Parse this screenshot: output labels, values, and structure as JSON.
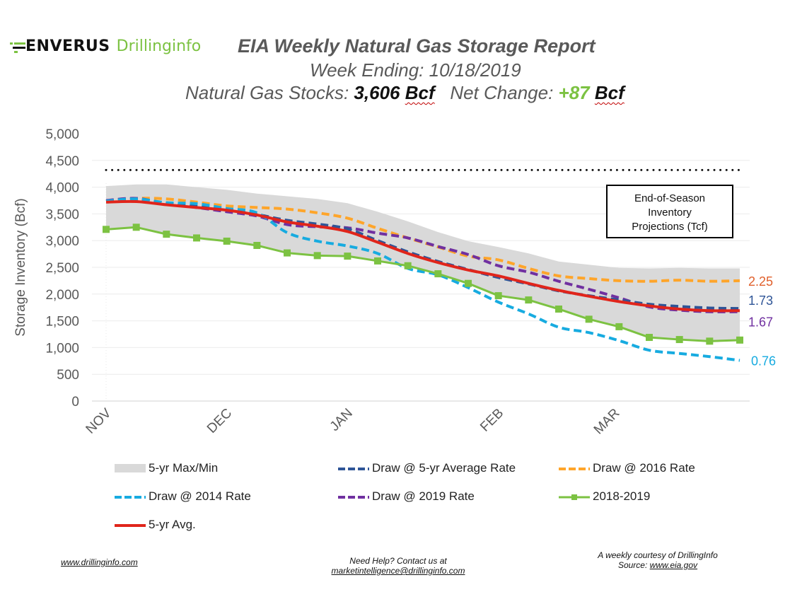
{
  "header": {
    "logo_brand": "ENVERUS",
    "logo_product": "Drillinginfo",
    "title": "EIA Weekly Natural Gas Storage Report",
    "week_ending_label": "Week Ending: 10/18/2019",
    "stocks_label": "Natural Gas Stocks: ",
    "stocks_value": "3,606",
    "stocks_unit": "Bcf",
    "net_change_label": "Net Change: ",
    "net_change_value": "+87",
    "net_change_unit": "Bcf"
  },
  "colors": {
    "band": "#d9d9d9",
    "five_yr_avg_rate": "#2f5597",
    "rate_2016": "#ffa52a",
    "rate_2014": "#17abe0",
    "rate_2019": "#7030a0",
    "season_2018_2019": "#7cc242",
    "five_yr_avg": "#e0251b",
    "label_2016": "#e0602c",
    "label_5yr": "#2f5597",
    "label_2019": "#7030a0",
    "label_2014": "#17abe0"
  },
  "chart_data": {
    "type": "line",
    "title": "EIA Weekly Natural Gas Storage Report",
    "xlabel": "",
    "ylabel": "Storage Inventory (Bcf)",
    "ylim": [
      0,
      5000
    ],
    "yticks": [
      0,
      500,
      1000,
      1500,
      2000,
      2500,
      3000,
      3500,
      4000,
      4500,
      5000
    ],
    "ytick_labels": [
      "0",
      "500",
      "1,000",
      "1,500",
      "2,000",
      "2,500",
      "3,000",
      "3,500",
      "4,000",
      "4,500",
      "5,000"
    ],
    "x_week_count": 22,
    "month_ticks": [
      {
        "label": "NOV",
        "week": 0
      },
      {
        "label": "DEC",
        "week": 4
      },
      {
        "label": "JAN",
        "week": 8
      },
      {
        "label": "FEB",
        "week": 13
      },
      {
        "label": "MAR",
        "week": 16.85
      }
    ],
    "grid": true,
    "reference_line": {
      "value": 4320,
      "style": "dotted"
    },
    "band": {
      "name": "5-yr Max/Min",
      "max": [
        4020,
        4050,
        4050,
        4000,
        3950,
        3880,
        3830,
        3780,
        3700,
        3540,
        3360,
        3160,
        2990,
        2880,
        2760,
        2610,
        2550,
        2490,
        2480,
        2490,
        2480,
        2480
      ],
      "min": [
        3210,
        3250,
        3120,
        3050,
        2990,
        2910,
        2770,
        2720,
        2710,
        2620,
        2530,
        2380,
        2220,
        1970,
        1890,
        1720,
        1530,
        1390,
        1190,
        1150,
        1120,
        1140
      ]
    },
    "series": [
      {
        "name": "Draw @ 5-yr Average Rate",
        "style": "dashed",
        "color_key": "five_yr_avg_rate",
        "values": [
          3740,
          3780,
          3700,
          3640,
          3580,
          3490,
          3380,
          3310,
          3220,
          3000,
          2790,
          2610,
          2460,
          2310,
          2190,
          2060,
          1970,
          1890,
          1810,
          1770,
          1740,
          1730
        ]
      },
      {
        "name": "Draw @ 2016 Rate",
        "style": "dashed",
        "color_key": "rate_2016",
        "values": [
          3740,
          3790,
          3780,
          3720,
          3650,
          3620,
          3590,
          3520,
          3420,
          3230,
          3050,
          2880,
          2710,
          2640,
          2480,
          2340,
          2290,
          2250,
          2240,
          2260,
          2240,
          2250
        ]
      },
      {
        "name": "Draw @ 2014 Rate",
        "style": "dashed",
        "color_key": "rate_2014",
        "values": [
          3740,
          3780,
          3710,
          3690,
          3600,
          3520,
          3150,
          2990,
          2900,
          2760,
          2480,
          2360,
          2120,
          1850,
          1630,
          1380,
          1280,
          1130,
          950,
          890,
          830,
          760
        ]
      },
      {
        "name": "Draw @ 2019 Rate",
        "style": "dashed",
        "color_key": "rate_2019",
        "values": [
          3750,
          3790,
          3690,
          3620,
          3540,
          3460,
          3300,
          3260,
          3240,
          3140,
          3050,
          2890,
          2740,
          2530,
          2410,
          2240,
          2090,
          1930,
          1760,
          1700,
          1670,
          1670
        ]
      },
      {
        "name": "2018-2019",
        "style": "solid-marker",
        "color_key": "season_2018_2019",
        "values": [
          3210,
          3250,
          3120,
          3050,
          2990,
          2910,
          2770,
          2720,
          2710,
          2620,
          2530,
          2380,
          2200,
          1970,
          1890,
          1720,
          1530,
          1390,
          1190,
          1150,
          1120,
          1140
        ]
      },
      {
        "name": "5-yr Avg.",
        "style": "solid",
        "color_key": "five_yr_avg",
        "values": [
          3720,
          3730,
          3670,
          3620,
          3570,
          3480,
          3350,
          3270,
          3170,
          2970,
          2760,
          2590,
          2450,
          2340,
          2200,
          2070,
          1960,
          1860,
          1780,
          1720,
          1690,
          1690
        ]
      }
    ],
    "end_labels": [
      {
        "text": "2.25",
        "series": "Draw @ 2016 Rate",
        "color_key": "label_2016"
      },
      {
        "text": "1.73",
        "series": "Draw @ 5-yr Average Rate",
        "color_key": "label_5yr"
      },
      {
        "text": "1.67",
        "series": "Draw @ 2019 Rate",
        "color_key": "label_2019"
      },
      {
        "text": "0.76",
        "series": "Draw @ 2014 Rate",
        "color_key": "label_2014"
      }
    ],
    "annotation_box": [
      "End-of-Season",
      "Inventory",
      "Projections (Tcf)"
    ],
    "legend": {
      "placement": "bottom",
      "items": [
        {
          "label": "5-yr Max/Min",
          "kind": "band"
        },
        {
          "label": "Draw @ 5-yr Average Rate",
          "kind": "dashed",
          "color_key": "five_yr_avg_rate"
        },
        {
          "label": "Draw @ 2016 Rate",
          "kind": "dashed",
          "color_key": "rate_2016"
        },
        {
          "label": "Draw @ 2014 Rate",
          "kind": "dashed",
          "color_key": "rate_2014"
        },
        {
          "label": "Draw @ 2019 Rate",
          "kind": "dashed",
          "color_key": "rate_2019"
        },
        {
          "label": "2018-2019",
          "kind": "marker",
          "color_key": "season_2018_2019"
        },
        {
          "label": "5-yr Avg.",
          "kind": "solid",
          "color_key": "five_yr_avg"
        }
      ]
    }
  },
  "footer": {
    "website": "www.drillinginfo.com",
    "help_line1": "Need Help? Contact us at",
    "help_email": "marketintelligence@drillinginfo.com",
    "courtesy": "A weekly courtesy of DrillingInfo",
    "source_label": "Source: ",
    "source_link": "www.eia.gov"
  }
}
